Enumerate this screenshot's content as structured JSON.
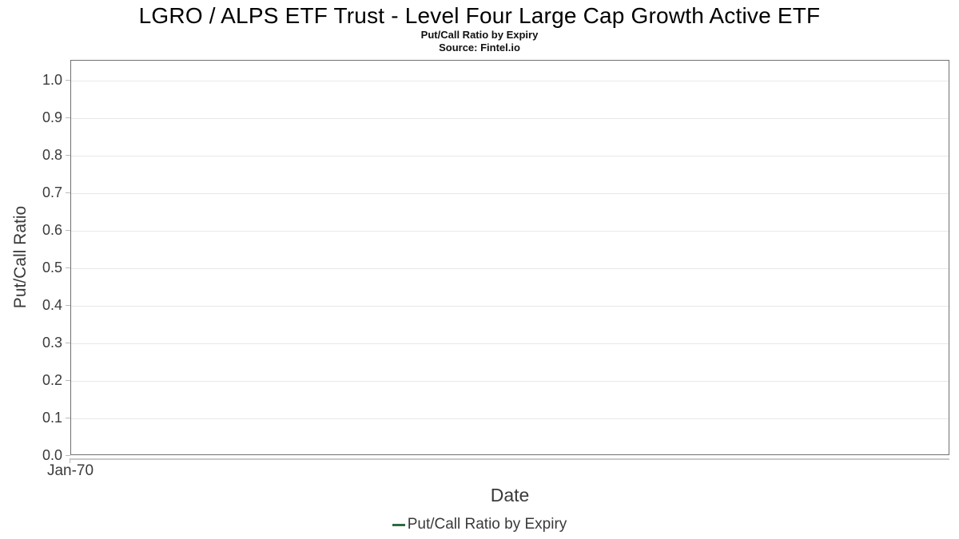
{
  "chart_data": {
    "type": "line",
    "title": "LGRO / ALPS ETF Trust - Level Four Large Cap Growth Active ETF",
    "subtitle": "Put/Call Ratio by Expiry",
    "source": "Source: Fintel.io",
    "xlabel": "Date",
    "ylabel": "Put/Call Ratio",
    "x_ticks": [
      "Jan-70"
    ],
    "y_ticks": [
      0.0,
      0.1,
      0.2,
      0.3,
      0.4,
      0.5,
      0.6,
      0.7,
      0.8,
      0.9,
      1.0
    ],
    "ylim": [
      0.0,
      1.05
    ],
    "grid": true,
    "legend_position": "bottom",
    "series": [
      {
        "name": "Put/Call Ratio by Expiry",
        "color": "#2e6b3e",
        "x": [],
        "values": []
      }
    ],
    "colors": {
      "plot_border": "#707070",
      "gridline": "#e8e8e8",
      "axis_line": "#c8c8c8",
      "tick_mark": "#b9b9b9",
      "label_text": "#3a3a3a",
      "title_text": "#000000"
    }
  }
}
